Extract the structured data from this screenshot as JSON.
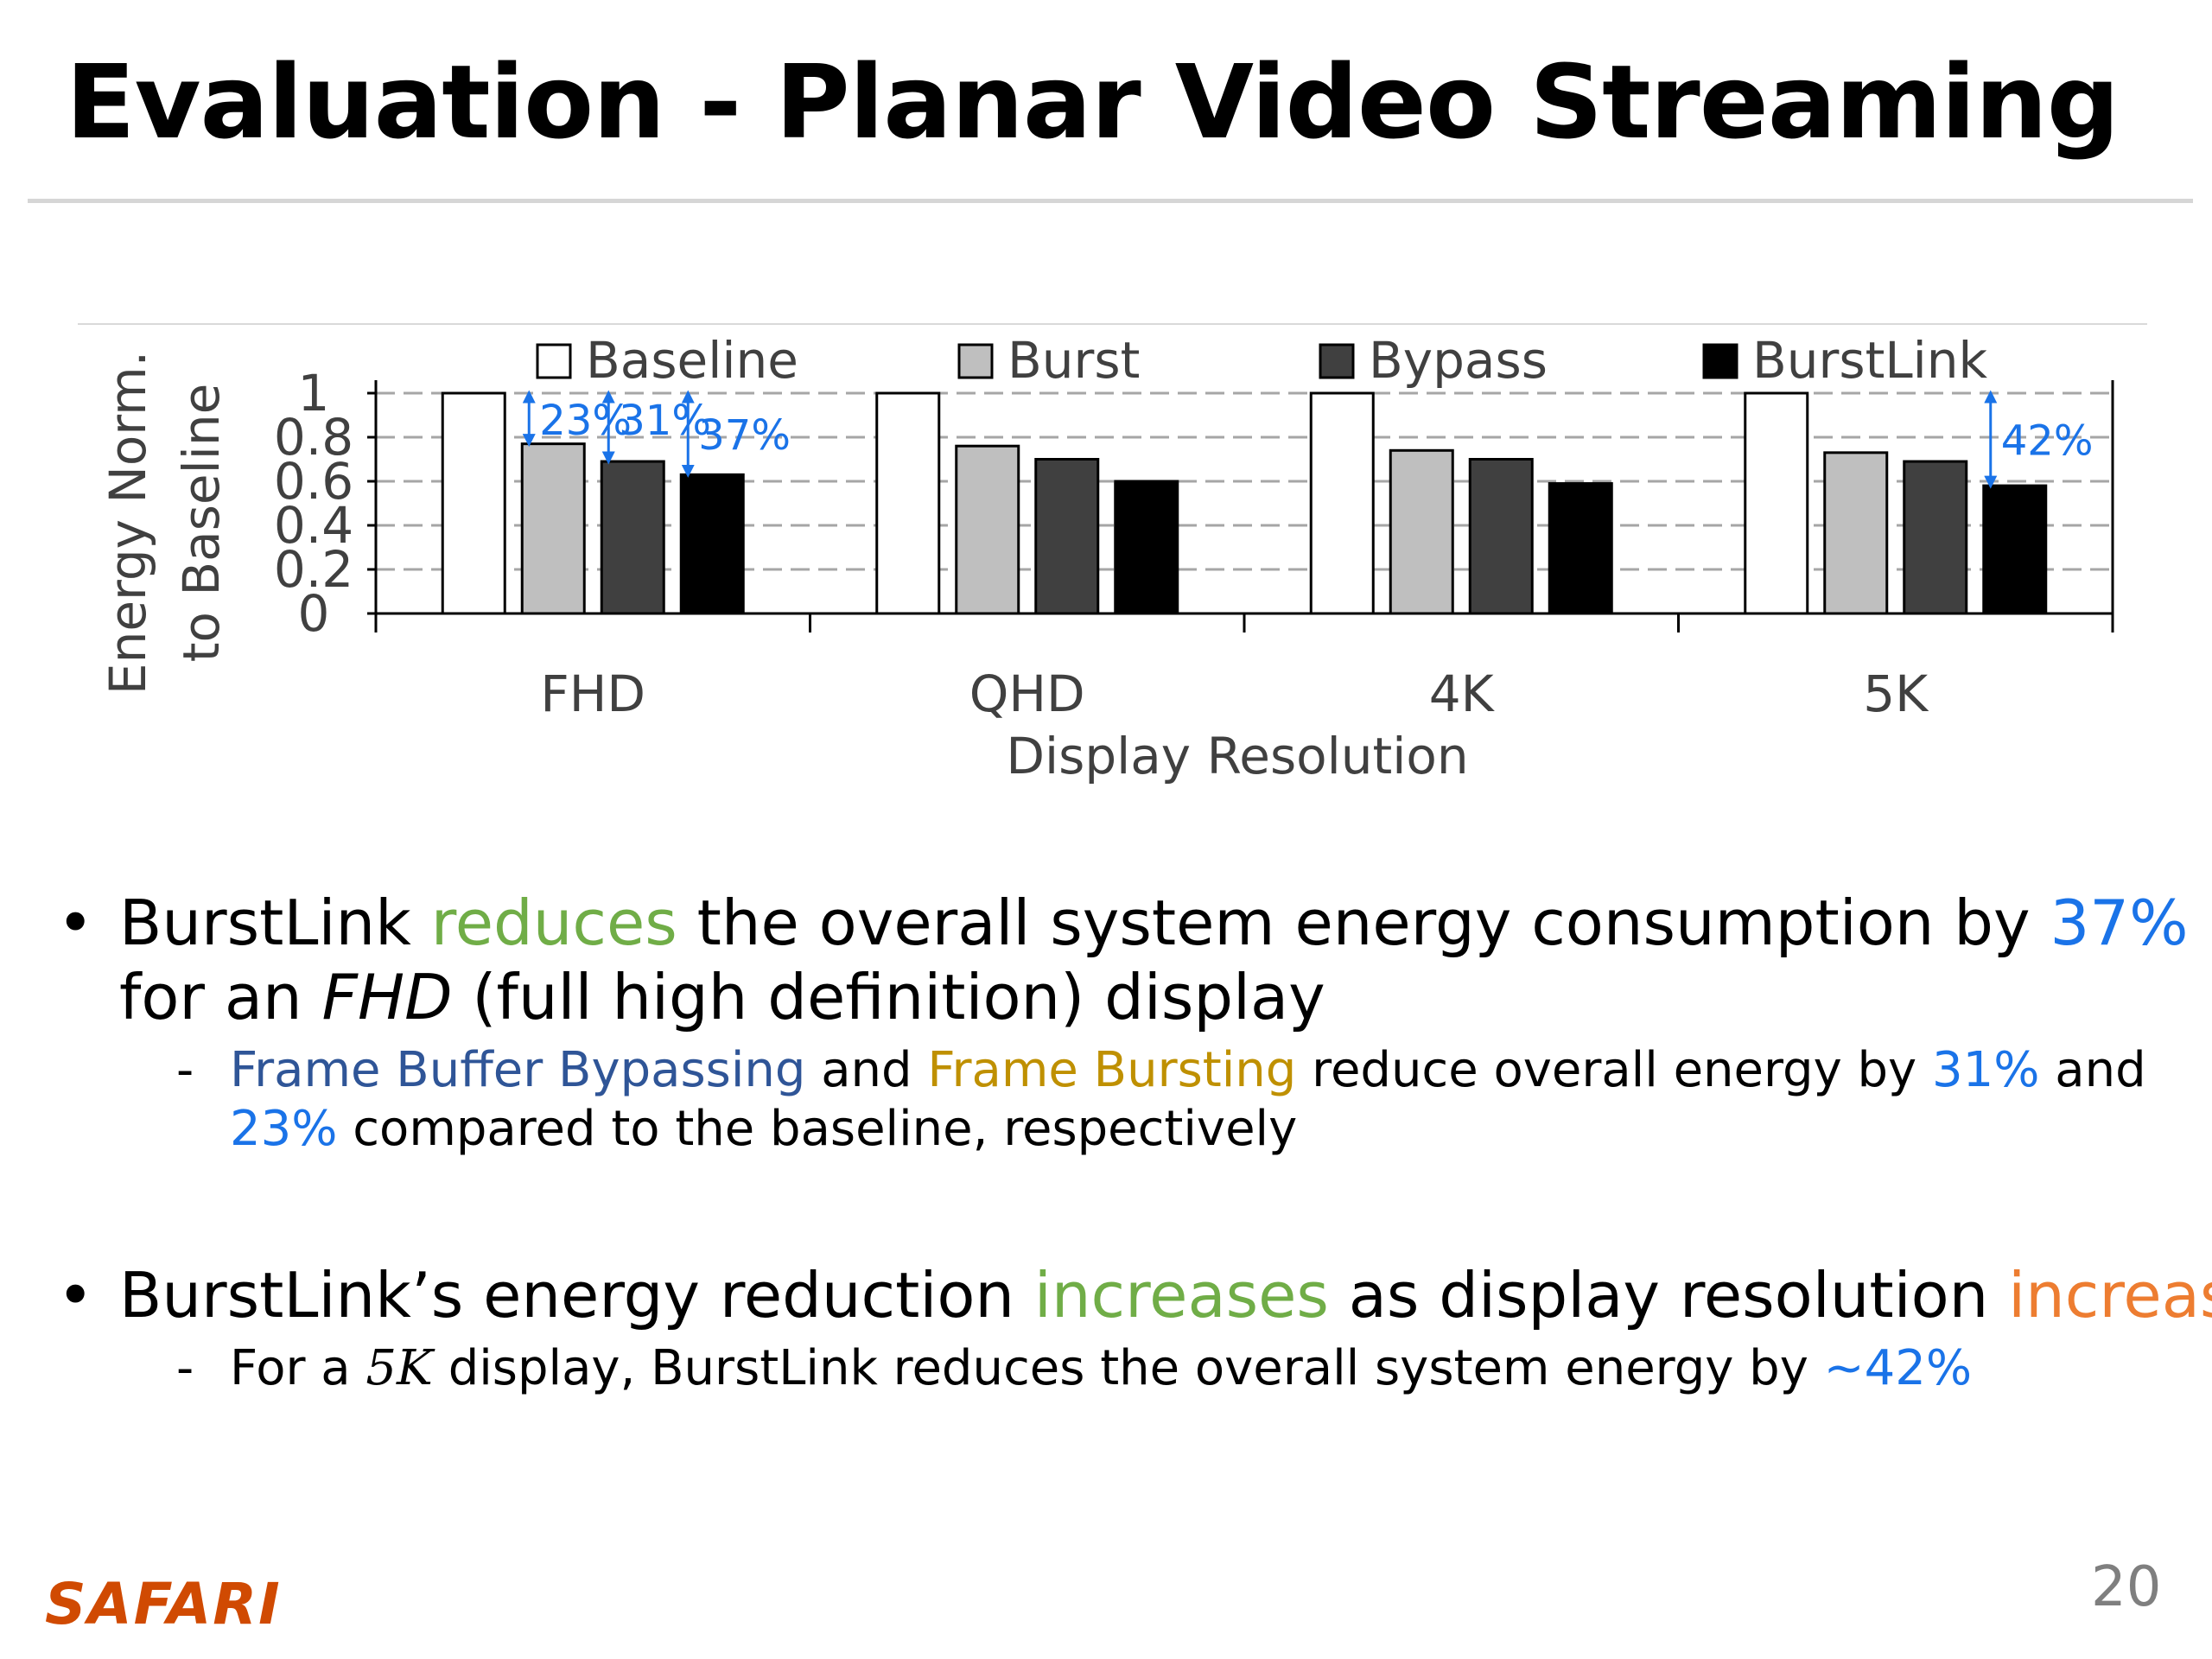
{
  "slide": {
    "title": "Evaluation - Planar Video Streaming",
    "page_number": "20",
    "footer_logo": "SAFARI"
  },
  "chart_data": {
    "type": "bar",
    "categories": [
      "FHD",
      "QHD",
      "4K",
      "5K"
    ],
    "series": [
      {
        "name": "Baseline",
        "values": [
          1.0,
          1.0,
          1.0,
          1.0
        ],
        "color": "#ffffff"
      },
      {
        "name": "Burst",
        "values": [
          0.77,
          0.76,
          0.74,
          0.73
        ],
        "color": "#bfbfbf"
      },
      {
        "name": "Bypass",
        "values": [
          0.69,
          0.7,
          0.7,
          0.69
        ],
        "color": "#404040"
      },
      {
        "name": "BurstLink",
        "values": [
          0.63,
          0.6,
          0.59,
          0.58
        ],
        "color": "#000000"
      }
    ],
    "xlabel": "Display Resolution",
    "ylabel_line1": "Energy Norm.",
    "ylabel_line2": "to Baseline",
    "ylim": [
      0,
      1
    ],
    "yticks": [
      "0",
      "0.2",
      "0.4",
      "0.6",
      "0.8",
      "1"
    ],
    "grid": true,
    "legend": "top",
    "annotation_color": "#1a73e8",
    "annotations": [
      {
        "category": "FHD",
        "series": "Burst",
        "label": "23%"
      },
      {
        "category": "FHD",
        "series": "Bypass",
        "label": "31%"
      },
      {
        "category": "FHD",
        "series": "BurstLink",
        "label": "37%"
      },
      {
        "category": "5K",
        "series": "BurstLink",
        "label": "42%"
      }
    ]
  },
  "bullets": [
    {
      "line1": {
        "a": "BurstLink ",
        "b": "reduces",
        "c": " the overall system energy consumption by ",
        "d": "37%"
      },
      "line2": {
        "a": "for an ",
        "b": "FHD",
        "c": " (full high definition) display"
      },
      "sub": {
        "line1": {
          "a": "Frame Buffer Bypassing",
          "b": " and ",
          "c": "Frame Bursting",
          "d": " reduce overall energy by ",
          "e": "31%",
          "f": " and"
        },
        "line2": {
          "a": "23%",
          "b": " compared to the baseline, respectively"
        }
      }
    },
    {
      "line1": {
        "a": "BurstLink’s energy reduction ",
        "b": "increases",
        "c": " as display resolution ",
        "d": "increases"
      },
      "sub": {
        "a": "For a ",
        "b": "5K",
        "c": " display, BurstLink reduces the overall system energy by ",
        "d": "~42%"
      }
    }
  ]
}
